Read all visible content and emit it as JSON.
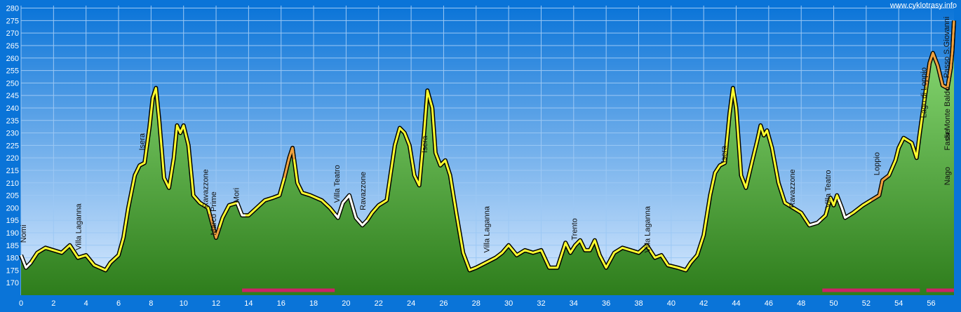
{
  "source_label": "www.cyklotrasy.info",
  "chart_data": {
    "type": "area",
    "title": "",
    "xlabel": "",
    "ylabel": "",
    "xlim": [
      0,
      57.4
    ],
    "ylim": [
      165,
      281
    ],
    "x_ticks": [
      0,
      2,
      4,
      6,
      8,
      10,
      12,
      14,
      16,
      18,
      20,
      22,
      24,
      26,
      28,
      30,
      32,
      34,
      36,
      38,
      40,
      42,
      44,
      46,
      48,
      50,
      52,
      54,
      56
    ],
    "y_ticks": [
      170,
      175,
      180,
      185,
      190,
      195,
      200,
      205,
      210,
      215,
      220,
      225,
      230,
      235,
      240,
      245,
      250,
      255,
      260,
      265,
      270,
      275,
      280
    ],
    "grid": true,
    "colors": {
      "background_top": "#0a74d8",
      "background_bottom": "#dcecff",
      "fill_top": "#8fe07a",
      "fill_bottom": "#2e7d1c",
      "profile_yellow": "#ffff30",
      "profile_orange": "#f0a040",
      "profile_white": "#ffffff",
      "unpaved_bar": "#cc2266"
    },
    "elevation_profile": [
      [
        0,
        181
      ],
      [
        0.3,
        176
      ],
      [
        0.6,
        178
      ],
      [
        1,
        182
      ],
      [
        1.5,
        184
      ],
      [
        2.5,
        182
      ],
      [
        3,
        185
      ],
      [
        3.5,
        180
      ],
      [
        4,
        181
      ],
      [
        4.5,
        177
      ],
      [
        5.2,
        175
      ],
      [
        5.5,
        178
      ],
      [
        6,
        181
      ],
      [
        6.3,
        188
      ],
      [
        6.6,
        200
      ],
      [
        7,
        213
      ],
      [
        7.3,
        217
      ],
      [
        7.6,
        218
      ],
      [
        7.9,
        232
      ],
      [
        8.1,
        244
      ],
      [
        8.3,
        248
      ],
      [
        8.5,
        235
      ],
      [
        8.8,
        212
      ],
      [
        9.1,
        208
      ],
      [
        9.4,
        220
      ],
      [
        9.6,
        233
      ],
      [
        9.8,
        230
      ],
      [
        10,
        233
      ],
      [
        10.3,
        225
      ],
      [
        10.6,
        205
      ],
      [
        11,
        202
      ],
      [
        11.5,
        200
      ],
      [
        12,
        188
      ],
      [
        12.4,
        196
      ],
      [
        12.8,
        201
      ],
      [
        13.3,
        202
      ],
      [
        13.6,
        197
      ],
      [
        14,
        197
      ],
      [
        14.5,
        200
      ],
      [
        15,
        203
      ],
      [
        15.5,
        204
      ],
      [
        15.9,
        205
      ],
      [
        16.2,
        212
      ],
      [
        16.5,
        220
      ],
      [
        16.7,
        224
      ],
      [
        17,
        210
      ],
      [
        17.3,
        206
      ],
      [
        17.8,
        205
      ],
      [
        18.5,
        203
      ],
      [
        19,
        200
      ],
      [
        19.5,
        196
      ],
      [
        19.8,
        202
      ],
      [
        20.2,
        205
      ],
      [
        20.6,
        196
      ],
      [
        21,
        193
      ],
      [
        21.3,
        195
      ],
      [
        21.6,
        198
      ],
      [
        22,
        201
      ],
      [
        22.5,
        203
      ],
      [
        23,
        225
      ],
      [
        23.3,
        232
      ],
      [
        23.6,
        230
      ],
      [
        23.9,
        225
      ],
      [
        24.2,
        213
      ],
      [
        24.5,
        209
      ],
      [
        24.8,
        230
      ],
      [
        25,
        247
      ],
      [
        25.3,
        240
      ],
      [
        25.5,
        222
      ],
      [
        25.8,
        217
      ],
      [
        26.1,
        219
      ],
      [
        26.4,
        213
      ],
      [
        26.8,
        197
      ],
      [
        27.2,
        182
      ],
      [
        27.6,
        175
      ],
      [
        28,
        176
      ],
      [
        28.6,
        178
      ],
      [
        29.2,
        180
      ],
      [
        29.6,
        182
      ],
      [
        30,
        185
      ],
      [
        30.5,
        181
      ],
      [
        31,
        183
      ],
      [
        31.5,
        182
      ],
      [
        32,
        183
      ],
      [
        32.5,
        176
      ],
      [
        33,
        176
      ],
      [
        33.5,
        186
      ],
      [
        33.8,
        182
      ],
      [
        34.1,
        185
      ],
      [
        34.4,
        187
      ],
      [
        34.7,
        183
      ],
      [
        35,
        183
      ],
      [
        35.3,
        187
      ],
      [
        35.6,
        181
      ],
      [
        36,
        176
      ],
      [
        36.5,
        182
      ],
      [
        37,
        184
      ],
      [
        37.5,
        183
      ],
      [
        38,
        182
      ],
      [
        38.5,
        185
      ],
      [
        39,
        180
      ],
      [
        39.4,
        181
      ],
      [
        39.8,
        177
      ],
      [
        40.4,
        176
      ],
      [
        40.9,
        175
      ],
      [
        41.2,
        178
      ],
      [
        41.6,
        181
      ],
      [
        42,
        189
      ],
      [
        42.4,
        205
      ],
      [
        42.7,
        214
      ],
      [
        43,
        217
      ],
      [
        43.3,
        218
      ],
      [
        43.6,
        238
      ],
      [
        43.8,
        248
      ],
      [
        44,
        240
      ],
      [
        44.3,
        213
      ],
      [
        44.6,
        208
      ],
      [
        45,
        219
      ],
      [
        45.3,
        227
      ],
      [
        45.5,
        233
      ],
      [
        45.7,
        229
      ],
      [
        45.9,
        231
      ],
      [
        46.2,
        224
      ],
      [
        46.6,
        210
      ],
      [
        47,
        202
      ],
      [
        47.5,
        200
      ],
      [
        48,
        198
      ],
      [
        48.5,
        193
      ],
      [
        49,
        194
      ],
      [
        49.5,
        197
      ],
      [
        49.8,
        204
      ],
      [
        50,
        201
      ],
      [
        50.2,
        205
      ],
      [
        50.5,
        200
      ],
      [
        50.7,
        196
      ],
      [
        51.2,
        198
      ],
      [
        51.8,
        201
      ],
      [
        52.3,
        203
      ],
      [
        52.8,
        205
      ],
      [
        53,
        211
      ],
      [
        53.4,
        213
      ],
      [
        53.8,
        219
      ],
      [
        54,
        224
      ],
      [
        54.3,
        228
      ],
      [
        54.8,
        226
      ],
      [
        55.1,
        220
      ],
      [
        55.3,
        230
      ],
      [
        55.6,
        244
      ],
      [
        55.9,
        258
      ],
      [
        56.1,
        262
      ],
      [
        56.4,
        257
      ],
      [
        56.7,
        249
      ],
      [
        57,
        248
      ],
      [
        57.2,
        256
      ],
      [
        57.3,
        263
      ],
      [
        57.4,
        275
      ]
    ],
    "orange_segments": [
      [
        11.6,
        12.2
      ],
      [
        16.2,
        16.8
      ],
      [
        52.3,
        53.4
      ],
      [
        55.7,
        57.4
      ]
    ],
    "white_segments": [
      [
        0,
        0.6
      ],
      [
        13.3,
        13.8
      ],
      [
        19.3,
        21.3
      ],
      [
        48.5,
        49.2
      ],
      [
        50.3,
        51.0
      ]
    ],
    "unpaved_bars": [
      [
        13.6,
        19.3
      ],
      [
        49.3,
        55.3
      ],
      [
        55.7,
        57.4
      ]
    ],
    "place_labels": [
      {
        "name": "Nomi",
        "x": 0.3,
        "y": 186
      },
      {
        "name": "Villa Laganna",
        "x": 3.7,
        "y": 183
      },
      {
        "name": "Isera",
        "x": 7.6,
        "y": 223
      },
      {
        "name": "Ravazzone",
        "x": 11.5,
        "y": 200
      },
      {
        "name": "Marco Prime",
        "x": 12.0,
        "y": 189
      },
      {
        "name": "Mori",
        "x": 13.4,
        "y": 202
      },
      {
        "name": "Villa Teatro",
        "x": 19.6,
        "y": 202
      },
      {
        "name": "Ravazzone",
        "x": 21.2,
        "y": 199
      },
      {
        "name": "Isera",
        "x": 25.0,
        "y": 222
      },
      {
        "name": "Villa Laganna",
        "x": 28.8,
        "y": 182
      },
      {
        "name": "Trento",
        "x": 34.2,
        "y": 187
      },
      {
        "name": "Villa Laganna",
        "x": 38.7,
        "y": 182
      },
      {
        "name": "Isera",
        "x": 43.4,
        "y": 218
      },
      {
        "name": "Ravazzone",
        "x": 47.6,
        "y": 200
      },
      {
        "name": "Villa Teatro",
        "x": 49.8,
        "y": 200
      },
      {
        "name": "Loppio",
        "x": 52.8,
        "y": 213
      },
      {
        "name": "Lago di Loppio",
        "x": 55.7,
        "y": 236
      },
      {
        "name": "Passo S.Giovanni",
        "x": 57.1,
        "y": 252
      },
      {
        "name": "Fasse",
        "x": 58.0,
        "y": 223
      },
      {
        "name": "dir.Monte Baldo",
        "x": 58.4,
        "y": 227
      },
      {
        "name": "Nago",
        "x": 59.2,
        "y": 209
      }
    ]
  }
}
